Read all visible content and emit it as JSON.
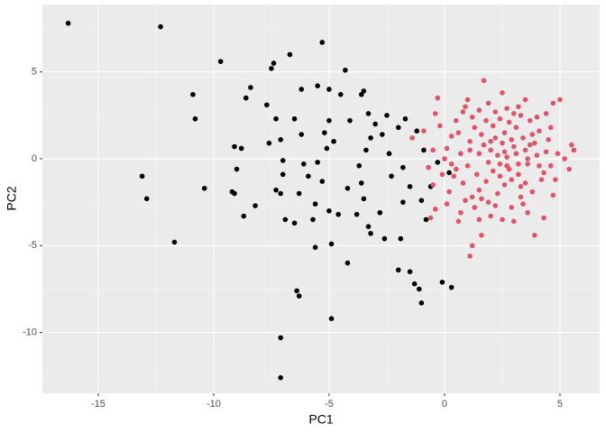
{
  "chart_data": {
    "type": "scatter",
    "x_label": "PC1",
    "y_label": "PC2",
    "xlim": [
      -17.42,
      6.72
    ],
    "ylim": [
      -13.5,
      8.88
    ],
    "xticks": [
      -15,
      -10,
      -5,
      0,
      5
    ],
    "yticks": [
      -10,
      -5,
      0,
      5
    ],
    "grid": true,
    "series": [
      {
        "color": "#000000",
        "x": [
          -16.3,
          -12.3,
          -9.7,
          -7.4,
          -7.5,
          -6.7,
          -5.3,
          -10.9,
          -10.8,
          -8.6,
          -8.4,
          -8.8,
          -9.1,
          -9.0,
          -9.2,
          -9.1,
          -10.4,
          -13.1,
          -12.9,
          -11.7,
          -8.7,
          -8.2,
          -7.6,
          -7.7,
          -7.3,
          -7.1,
          -7.0,
          -7.0,
          -7.3,
          -7.1,
          -6.9,
          -6.5,
          -6.4,
          -6.3,
          -7.1,
          -7.1,
          -6.2,
          -6.5,
          -6.2,
          -6.1,
          -6.3,
          -5.9,
          -5.5,
          -5.0,
          -4.5,
          -4.3,
          -5.0,
          -5.2,
          -5.1,
          -5.5,
          -5.3,
          -5.6,
          -5.7,
          -5.6,
          -5.0,
          -4.6,
          -4.9,
          -4.2,
          -4.9,
          -4.1,
          -3.6,
          -3.5,
          -3.3,
          -3.2,
          -3.4,
          -3.7,
          -3.6,
          -3.5,
          -3.8,
          -3.3,
          -3.2,
          -2.8,
          -2.6,
          -2.3,
          -2.4,
          -2.7,
          -3.0,
          -2.5,
          -2.0,
          -1.7,
          -1.8,
          -1.5,
          -1.8,
          -1.9,
          -2.0,
          -1.5,
          -1.3,
          -1.1,
          -1.0,
          -0.1,
          0.3,
          -0.8,
          -1.0,
          -0.6,
          -0.9,
          -1.2,
          -0.3,
          0.2,
          -4.2,
          -4.8
        ],
        "values": [
          7.8,
          7.6,
          5.6,
          5.5,
          5.2,
          6.0,
          6.7,
          3.7,
          2.3,
          3.5,
          4.1,
          0.6,
          0.7,
          -0.6,
          -1.9,
          -2.0,
          -1.7,
          -1.0,
          -2.3,
          -4.8,
          -3.3,
          -2.7,
          0.9,
          3.1,
          2.3,
          1.1,
          -0.1,
          -0.9,
          -1.8,
          -2.0,
          -3.5,
          -3.7,
          -7.6,
          -7.9,
          -10.3,
          -12.6,
          4.0,
          2.3,
          1.4,
          -0.3,
          -2.0,
          -1.0,
          4.2,
          4.0,
          3.7,
          5.1,
          2.2,
          1.5,
          0.6,
          -0.2,
          -1.3,
          -2.6,
          -3.5,
          -5.1,
          -3.0,
          -3.2,
          -4.9,
          -6.0,
          -9.2,
          2.2,
          3.7,
          3.9,
          2.6,
          1.2,
          0.5,
          -0.4,
          -1.4,
          -2.3,
          -3.2,
          -3.9,
          -4.3,
          -3.1,
          -4.6,
          -1.0,
          0.3,
          1.4,
          2.0,
          2.5,
          1.8,
          2.3,
          -0.5,
          -1.6,
          -2.5,
          -4.6,
          -6.4,
          -6.5,
          -7.2,
          -7.5,
          -8.3,
          -7.1,
          -7.4,
          -3.5,
          -2.4,
          -1.6,
          0.5,
          1.6,
          -0.2,
          -0.8,
          -1.7,
          1.0
        ]
      },
      {
        "color": "#DF536B",
        "x": [
          1.7,
          1.0,
          0.9,
          -0.3,
          -0.4,
          -0.9,
          -1.4,
          -0.5,
          -0.7,
          -0.5,
          -0.4,
          -0.6,
          0.6,
          1.1,
          1.2,
          1.6,
          1.5,
          2.0,
          2.5,
          3.6,
          3.9,
          4.3,
          4.7,
          5.4,
          5.6,
          5.5,
          5.0,
          4.7,
          4.4,
          3.5,
          3.2,
          2.7,
          2.2,
          1.5,
          0.5,
          0.3,
          0.1,
          0.3,
          0.8,
          1.2,
          1.9,
          2.3,
          2.9,
          3.3,
          3.8,
          4.2,
          4.6,
          4.9,
          4.5,
          4.1,
          3.7,
          3.1,
          2.6,
          2.1,
          1.6,
          1.1,
          0.7,
          1.0,
          1.4,
          1.8,
          2.4,
          2.8,
          3.2,
          3.6,
          4.0,
          3.9,
          3.4,
          3.0,
          2.5,
          2.0,
          1.5,
          1.9,
          2.3,
          2.7,
          3.1,
          3.5,
          2.9,
          2.2,
          1.3,
          0.6,
          0.4,
          0.2,
          0.9,
          1.5,
          2.6,
          3.5,
          4.3,
          4.8,
          5.2,
          4.4,
          3.8,
          3.3,
          2.8,
          2.4,
          1.8,
          1.2,
          0.8,
          -0.2,
          -0.1,
          0.1,
          0.7,
          1.3,
          2.2,
          3.0,
          3.3,
          2.1,
          1.7,
          2.6,
          3.2,
          2.4,
          2.0,
          3.6,
          4.1,
          1.1,
          0.5,
          2.9,
          4.0,
          4.6,
          3.0,
          1.9,
          2.5,
          3.4,
          1.6,
          0.0,
          2.7,
          3.7
        ],
        "values": [
          4.5,
          3.4,
          3.0,
          3.5,
          2.6,
          1.6,
          1.2,
          0.5,
          -0.5,
          -1.5,
          -2.9,
          -3.4,
          -3.6,
          -5.6,
          -5.0,
          -4.4,
          -3.5,
          -3.3,
          -3.5,
          -3.1,
          -4.4,
          -3.4,
          -2.1,
          -0.6,
          0.5,
          0.8,
          3.4,
          3.2,
          2.6,
          3.4,
          3.0,
          2.9,
          2.7,
          2.8,
          2.2,
          1.3,
          0.6,
          -0.3,
          -1.4,
          -2.2,
          -2.5,
          -2.0,
          -2.8,
          -2.2,
          -1.9,
          -1.2,
          -0.4,
          0.3,
          1.1,
          1.6,
          2.2,
          1.8,
          1.5,
          1.9,
          1.4,
          1.0,
          0.3,
          -0.4,
          -0.9,
          -1.3,
          -1.0,
          -0.6,
          -0.9,
          -0.3,
          0.2,
          0.9,
          1.2,
          0.7,
          0.9,
          0.5,
          0.3,
          -0.2,
          0.2,
          0.1,
          0.3,
          0.5,
          1.1,
          1.2,
          1.8,
          1.5,
          -1.0,
          -1.9,
          -2.4,
          -1.8,
          -1.5,
          -1.4,
          -0.8,
          -1.2,
          0.0,
          0.4,
          1.4,
          2.5,
          2.1,
          2.3,
          2.2,
          2.4,
          2.7,
          1.9,
          -0.9,
          -2.6,
          -3.1,
          -2.8,
          -2.7,
          -3.6,
          -1.6,
          -0.7,
          0.8,
          0.4,
          -0.3,
          -0.3,
          1.0,
          0.0,
          -0.4,
          0.5,
          -0.6,
          -1.2,
          2.4,
          1.8,
          2.6,
          3.2,
          3.8,
          -2.6,
          -2.3,
          0.0,
          -0.4,
          0.8
        ]
      }
    ]
  }
}
